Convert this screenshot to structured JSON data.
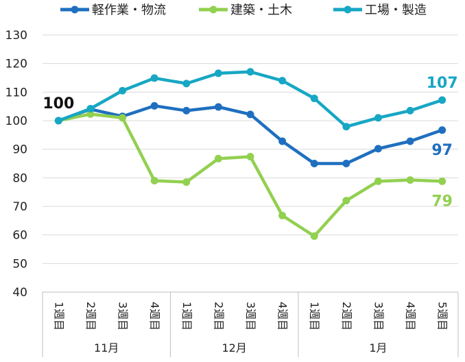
{
  "chart_data": {
    "type": "line",
    "title": "",
    "xlabel": "",
    "ylabel": "",
    "ylim": [
      40,
      130
    ],
    "yticks": [
      40,
      50,
      60,
      70,
      80,
      90,
      100,
      110,
      120,
      130
    ],
    "grid": true,
    "legend_position": "top",
    "categories": [
      "1週目",
      "2週目",
      "3週目",
      "4週目",
      "1週目",
      "2週目",
      "3週目",
      "4週目",
      "1週目",
      "2週目",
      "3週目",
      "4週目",
      "5週目"
    ],
    "groups": [
      {
        "label": "11月",
        "count": 4
      },
      {
        "label": "12月",
        "count": 4
      },
      {
        "label": "1月",
        "count": 5
      }
    ],
    "series": [
      {
        "name": "軽作業・物流",
        "color": "#1f6fbf",
        "values": [
          100,
          104,
          101.5,
          105.2,
          103.5,
          104.8,
          102.2,
          92.8,
          85,
          85,
          90.2,
          92.8,
          96.7
        ],
        "end_label": "97"
      },
      {
        "name": "建築・土木",
        "color": "#92d050",
        "values": [
          100,
          102.3,
          101,
          79,
          78.5,
          86.7,
          87.4,
          66.8,
          59.6,
          72,
          78.8,
          79.2,
          78.8
        ],
        "end_label": "79"
      },
      {
        "name": "工場・製造",
        "color": "#17a7c4",
        "values": [
          100,
          104.2,
          110.5,
          114.9,
          113,
          116.6,
          117.1,
          114,
          107.8,
          97.9,
          101,
          103.5,
          107.2
        ],
        "end_label": "107"
      }
    ],
    "start_label": "100"
  }
}
